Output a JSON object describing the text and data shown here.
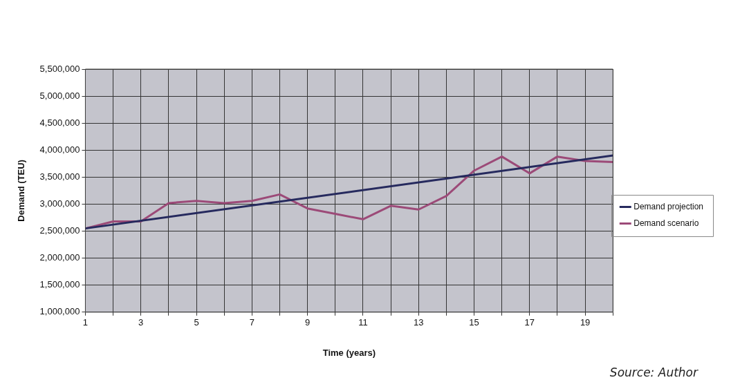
{
  "chart_data": {
    "type": "line",
    "xlabel": "Time (years)",
    "ylabel": "Demand (TEU)",
    "xlim": [
      1,
      20
    ],
    "xticks": [
      1,
      {
        "value": 2,
        "label": null
      },
      3,
      {
        "value": 4,
        "label": null
      },
      5,
      {
        "value": 6,
        "label": null
      },
      7,
      {
        "value": 8,
        "label": null
      },
      9,
      {
        "value": 10,
        "label": null
      },
      11,
      {
        "value": 12,
        "label": null
      },
      13,
      {
        "value": 14,
        "label": null
      },
      15,
      {
        "value": 16,
        "label": null
      },
      17,
      {
        "value": 18,
        "label": null
      },
      19,
      {
        "value": 20,
        "label": null
      }
    ],
    "ylim": [
      1000000,
      5500000
    ],
    "yticks": [
      {
        "value": 1000000,
        "label": "1,000,000"
      },
      {
        "value": 1500000,
        "label": "1,500,000"
      },
      {
        "value": 2000000,
        "label": "2,000,000"
      },
      {
        "value": 2500000,
        "label": "2,500,000"
      },
      {
        "value": 3000000,
        "label": "3,000,000"
      },
      {
        "value": 3500000,
        "label": "3,500,000"
      },
      {
        "value": 4000000,
        "label": "4,000,000"
      },
      {
        "value": 4500000,
        "label": "4,500,000"
      },
      {
        "value": 5000000,
        "label": "5,000,000"
      },
      {
        "value": 5500000,
        "label": "5,500,000"
      }
    ],
    "grid": true,
    "legend": "right",
    "marker": "none",
    "line_style": "solid",
    "x": [
      1,
      2,
      3,
      4,
      5,
      6,
      7,
      8,
      9,
      10,
      11,
      12,
      13,
      14,
      15,
      16,
      17,
      18,
      19,
      20
    ],
    "series": [
      {
        "name": "Demand projection",
        "color": "#262a5e",
        "x": [
          1,
          20
        ],
        "values": [
          2550000,
          3900000
        ]
      },
      {
        "name": "Demand scenario",
        "color": "#9c4a78",
        "values": [
          2550000,
          2680000,
          2680000,
          3020000,
          3060000,
          3020000,
          3060000,
          3180000,
          2920000,
          2820000,
          2720000,
          2970000,
          2900000,
          3150000,
          3620000,
          3880000,
          3570000,
          3880000,
          3800000,
          3780000
        ]
      }
    ],
    "annotations": [
      "Source:  Author"
    ]
  }
}
